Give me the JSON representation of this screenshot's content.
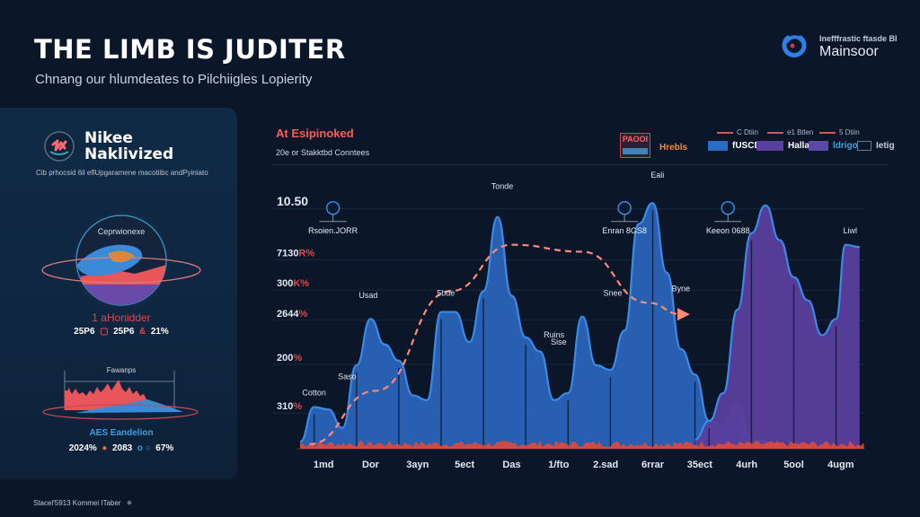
{
  "header": {
    "title": "THE LIMB IS JUDITER",
    "subtitle": "Chnang our hlumdeates to Pilchiigles Lopierity"
  },
  "brand": {
    "tagline": "Inefffrastic ftasde BI",
    "name": "Mainsoor",
    "accent": "#2f7fe6"
  },
  "side_panel": {
    "name_line1": "Nikee",
    "name_line2": "Naklivized",
    "description": "Cib prhocsid 6il eflUpgaramene macotiibc andPyiniato",
    "planet_label": "Ceprwionexe",
    "stat1": {
      "title": "1 aHonidder",
      "values": [
        "25P6",
        "25P6",
        "21%"
      ]
    },
    "mini_chart_label": "Fawanps",
    "stat2": {
      "title": "AES Eandelion",
      "values": [
        "2024%",
        "2083",
        "67%"
      ]
    }
  },
  "footer": {
    "text": "Stacel'5913 Kommei ITaber"
  },
  "chart_panel": {
    "title": "At Esipinoked",
    "subtitle": "20e or Stakktbd Conntees",
    "legend": {
      "badge_top": "PAOOI",
      "main_label": "Hrebls",
      "line_items": [
        "C Dtiin",
        "e1 Btlen",
        "5 Dtiin"
      ],
      "items": [
        {
          "label": "fUSCD",
          "color": "#2a6bc4"
        },
        {
          "label": "Hallacu",
          "color": "#5a3ea0"
        },
        {
          "label": "ldrigo",
          "color": "#5a4aa8"
        },
        {
          "label": "Ietig",
          "color": "outline"
        }
      ]
    }
  },
  "chart_data": {
    "type": "area",
    "title": "At Esipinoked",
    "subtitle": "20e or Stakktbd Conntees",
    "y_tick_labels": [
      {
        "value": "10.50",
        "unit": ""
      },
      {
        "value": "7130",
        "unit": "R%"
      },
      {
        "value": "300",
        "unit": "K%"
      },
      {
        "value": "2644",
        "unit": "%"
      },
      {
        "value": "200",
        "unit": "%"
      },
      {
        "value": "310",
        "unit": "%"
      }
    ],
    "y_tick_positions": [
      10.5,
      8.3,
      7.0,
      5.7,
      3.8,
      1.7
    ],
    "ylim": [
      0,
      12
    ],
    "x_tick_labels": [
      "1md",
      "Dor",
      "3ayn",
      "5ect",
      "Das",
      "1/fto",
      "2.sad",
      "6rrar",
      "35ect",
      "4urh",
      "5ool",
      "4ugm"
    ],
    "xlim": [
      0,
      12
    ],
    "grid": true,
    "series": [
      {
        "name": "fUSCD",
        "color": "#2a63b8",
        "x": [
          0,
          0.3,
          0.6,
          0.9,
          1.2,
          1.5,
          1.8,
          2.1,
          2.4,
          2.7,
          3.0,
          3.3,
          3.6,
          3.9,
          4.2,
          4.5,
          4.8,
          5.1,
          5.4,
          5.7,
          6.0,
          6.3,
          6.6,
          6.9,
          7.2,
          7.5,
          7.8,
          8.1,
          8.4,
          8.7,
          9.0,
          9.3,
          9.6,
          9.9,
          10.2
        ],
        "values": [
          0.3,
          1.8,
          1.7,
          0.9,
          3.6,
          5.6,
          4.5,
          3.8,
          2.3,
          2.1,
          5.9,
          5.9,
          4.6,
          6.8,
          10.0,
          6.6,
          4.8,
          4.2,
          2.1,
          2.4,
          5.7,
          3.6,
          3.4,
          5.1,
          9.7,
          10.6,
          7.6,
          4.3,
          3.2,
          1.2,
          1.0,
          2.0,
          0.4,
          0.3,
          0.2
        ]
      },
      {
        "name": "Hallacu",
        "color": "#5a3e9c",
        "x": [
          8.4,
          8.7,
          9.0,
          9.3,
          9.6,
          9.9,
          10.2,
          10.5,
          10.8,
          11.1,
          11.4,
          11.6,
          11.9
        ],
        "values": [
          0.4,
          1.2,
          2.4,
          6.0,
          9.3,
          10.5,
          9.0,
          7.4,
          6.4,
          4.9,
          5.6,
          8.8,
          8.7
        ]
      },
      {
        "name": "Ietig",
        "color": "#e04a3a",
        "note": "noise baseline",
        "x": [
          0,
          12
        ],
        "values": [
          0.3,
          0.3
        ]
      }
    ],
    "trend_arrow": {
      "color": "#ff8a7a",
      "style": "dashed",
      "x": [
        0.2,
        1.6,
        3.2,
        4.5,
        6.0,
        7.4,
        8.1
      ],
      "values": [
        0.2,
        2.5,
        6.8,
        8.8,
        8.5,
        6.3,
        5.8
      ]
    },
    "peak_labels": [
      {
        "text": "Cotton",
        "x": 0.3,
        "y": 2.3
      },
      {
        "text": "Saso",
        "x": 1.0,
        "y": 3.0
      },
      {
        "text": "Usad",
        "x": 1.45,
        "y": 6.5
      },
      {
        "text": "5bde",
        "x": 3.1,
        "y": 6.6
      },
      {
        "text": "Tonde",
        "x": 4.3,
        "y": 11.2
      },
      {
        "text": "Ruins",
        "x": 5.4,
        "y": 4.8
      },
      {
        "text": "Sise",
        "x": 5.5,
        "y": 4.5
      },
      {
        "text": "Snee",
        "x": 6.65,
        "y": 6.6
      },
      {
        "text": "Eali",
        "x": 7.6,
        "y": 11.7
      },
      {
        "text": "Byne",
        "x": 8.1,
        "y": 6.8
      },
      {
        "text": "Liwl",
        "x": 11.7,
        "y": 9.3
      }
    ],
    "callouts": [
      {
        "text": "Rsoien.JORR",
        "x": 0.7
      },
      {
        "text": "Enran 8GS8",
        "x": 6.9
      },
      {
        "text": "Keeon 0688",
        "x": 9.1
      }
    ],
    "legend_position": "top-right"
  }
}
